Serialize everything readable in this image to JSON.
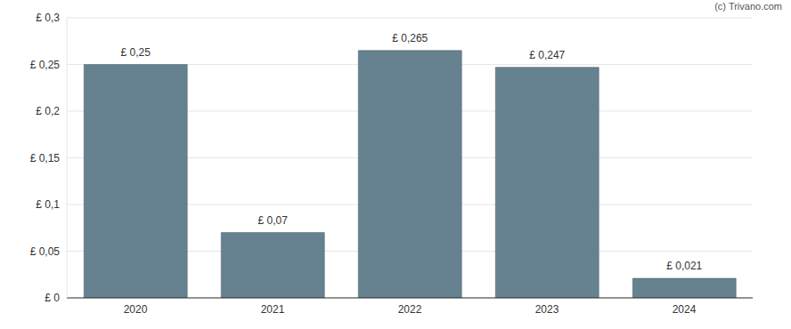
{
  "chart_data": {
    "type": "bar",
    "annotations": [
      "(c) Trivano.com"
    ],
    "categories": [
      "2020",
      "2021",
      "2022",
      "2023",
      "2024"
    ],
    "values": [
      0.25,
      0.07,
      0.265,
      0.247,
      0.021
    ],
    "value_labels": [
      "£ 0,25",
      "£ 0,07",
      "£ 0,265",
      "£ 0,247",
      "£ 0,021"
    ],
    "data_labels": true,
    "color": "#66818f",
    "ylim": [
      0,
      0.3
    ],
    "yticks": [
      {
        "value": 0,
        "label": "£ 0"
      },
      {
        "value": 0.05,
        "label": "£ 0,05"
      },
      {
        "value": 0.1,
        "label": "£ 0,1"
      },
      {
        "value": 0.15,
        "label": "£ 0,15"
      },
      {
        "value": 0.2,
        "label": "£ 0,2"
      },
      {
        "value": 0.25,
        "label": "£ 0,25"
      },
      {
        "value": 0.3,
        "label": "£ 0,3"
      }
    ],
    "grid": true
  }
}
